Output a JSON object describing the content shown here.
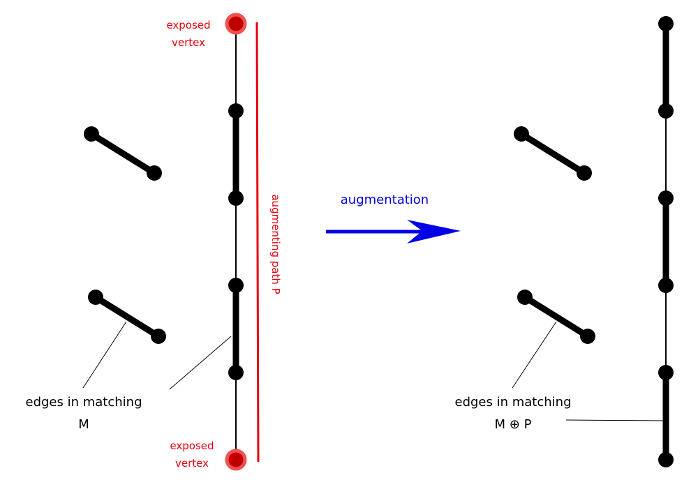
{
  "left": {
    "exposed_top": [
      "exposed",
      "vertex"
    ],
    "path_label": "augmenting path P",
    "matching_label": [
      "edges in matching",
      "M"
    ],
    "exposed_bottom": [
      "exposed",
      "vertex"
    ]
  },
  "arrow": {
    "label": "augmentation"
  },
  "right": {
    "matching_label": [
      "edges in matching",
      "M ⊕ P"
    ]
  }
}
